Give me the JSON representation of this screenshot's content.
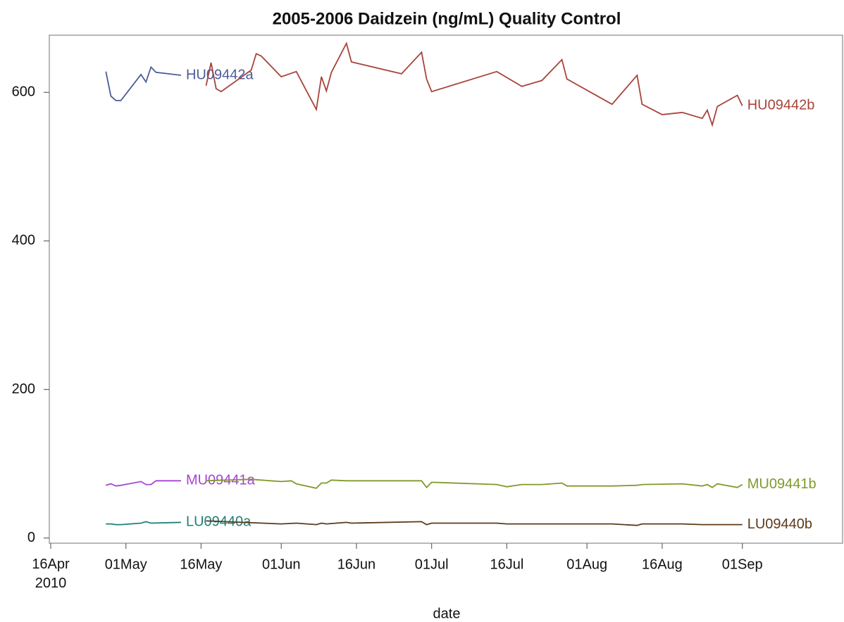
{
  "chart_data": {
    "type": "line",
    "title": "2005-2006 Daidzein (ng/mL) Quality Control",
    "x_label": "date",
    "xlim": [
      "2010-04-16",
      "2010-09-21"
    ],
    "xticks": [
      {
        "value": "2010-04-16",
        "label": "16Apr 2010"
      },
      {
        "value": "2010-05-01",
        "label": "01May"
      },
      {
        "value": "2010-05-16",
        "label": "16May"
      },
      {
        "value": "2010-06-01",
        "label": "01Jun"
      },
      {
        "value": "2010-06-16",
        "label": "16Jun"
      },
      {
        "value": "2010-07-01",
        "label": "01Jul"
      },
      {
        "value": "2010-07-16",
        "label": "16Jul"
      },
      {
        "value": "2010-08-01",
        "label": "01Aug"
      },
      {
        "value": "2010-08-16",
        "label": "16Aug"
      },
      {
        "value": "2010-09-01",
        "label": "01Sep"
      }
    ],
    "ylim": [
      -7,
      677
    ],
    "yticks": [
      0,
      200,
      400,
      600
    ],
    "grid": false,
    "series": [
      {
        "name": "HU09442a",
        "color": "#4a5c97",
        "x": [
          "2010-04-27",
          "2010-04-28",
          "2010-04-29",
          "2010-04-30",
          "2010-05-04",
          "2010-05-05",
          "2010-05-06",
          "2010-05-07",
          "2010-05-12"
        ],
        "values": [
          628,
          595,
          589,
          589,
          624,
          614,
          634,
          627,
          623
        ]
      },
      {
        "name": "MU09441a",
        "color": "#a545d4",
        "x": [
          "2010-04-27",
          "2010-04-28",
          "2010-04-29",
          "2010-04-30",
          "2010-05-04",
          "2010-05-05",
          "2010-05-06",
          "2010-05-07",
          "2010-05-12"
        ],
        "values": [
          71,
          73,
          70,
          71,
          76,
          72,
          72,
          77,
          77
        ]
      },
      {
        "name": "LU09440a",
        "color": "#1f7f78",
        "x": [
          "2010-04-27",
          "2010-04-28",
          "2010-04-29",
          "2010-04-30",
          "2010-05-04",
          "2010-05-05",
          "2010-05-06",
          "2010-05-12"
        ],
        "values": [
          19,
          19,
          18,
          18,
          20,
          22,
          20,
          21
        ]
      },
      {
        "name": "HU09442b",
        "color": "#a8433a",
        "x": [
          "2010-05-17",
          "2010-05-18",
          "2010-05-19",
          "2010-05-20",
          "2010-05-26",
          "2010-05-27",
          "2010-05-28",
          "2010-06-01",
          "2010-06-04",
          "2010-06-08",
          "2010-06-09",
          "2010-06-10",
          "2010-06-11",
          "2010-06-14",
          "2010-06-15",
          "2010-06-25",
          "2010-06-29",
          "2010-06-30",
          "2010-07-01",
          "2010-07-14",
          "2010-07-19",
          "2010-07-23",
          "2010-07-27",
          "2010-07-28",
          "2010-08-06",
          "2010-08-11",
          "2010-08-12",
          "2010-08-16",
          "2010-08-20",
          "2010-08-24",
          "2010-08-25",
          "2010-08-26",
          "2010-08-27",
          "2010-08-31",
          "2010-09-01"
        ],
        "values": [
          609,
          640,
          605,
          601,
          630,
          652,
          649,
          621,
          628,
          577,
          621,
          602,
          627,
          666,
          641,
          625,
          654,
          618,
          601,
          628,
          608,
          616,
          644,
          618,
          584,
          623,
          584,
          570,
          573,
          565,
          576,
          556,
          581,
          596,
          582
        ]
      },
      {
        "name": "MU09441b",
        "color": "#7f9a2a",
        "x": [
          "2010-05-17",
          "2010-05-26",
          "2010-05-28",
          "2010-06-01",
          "2010-06-03",
          "2010-06-04",
          "2010-06-08",
          "2010-06-09",
          "2010-06-10",
          "2010-06-11",
          "2010-06-14",
          "2010-06-29",
          "2010-06-30",
          "2010-07-01",
          "2010-07-14",
          "2010-07-16",
          "2010-07-19",
          "2010-07-23",
          "2010-07-27",
          "2010-07-28",
          "2010-08-06",
          "2010-08-11",
          "2010-08-12",
          "2010-08-20",
          "2010-08-24",
          "2010-08-25",
          "2010-08-26",
          "2010-08-27",
          "2010-08-31",
          "2010-09-01"
        ],
        "values": [
          77,
          79,
          78,
          76,
          77,
          73,
          67,
          74,
          74,
          78,
          77,
          77,
          68,
          75,
          72,
          69,
          72,
          72,
          74,
          70,
          70,
          71,
          72,
          73,
          70,
          72,
          68,
          73,
          68,
          72
        ]
      },
      {
        "name": "LU09440b",
        "color": "#5c3a1a",
        "x": [
          "2010-05-17",
          "2010-06-01",
          "2010-06-04",
          "2010-06-08",
          "2010-06-09",
          "2010-06-10",
          "2010-06-14",
          "2010-06-15",
          "2010-06-29",
          "2010-06-30",
          "2010-07-01",
          "2010-07-14",
          "2010-07-16",
          "2010-08-06",
          "2010-08-11",
          "2010-08-12",
          "2010-08-20",
          "2010-08-24",
          "2010-09-01"
        ],
        "values": [
          23,
          19,
          20,
          18,
          20,
          19,
          21,
          20,
          22,
          18,
          20,
          20,
          19,
          19,
          17,
          19,
          19,
          18,
          18
        ]
      }
    ]
  }
}
